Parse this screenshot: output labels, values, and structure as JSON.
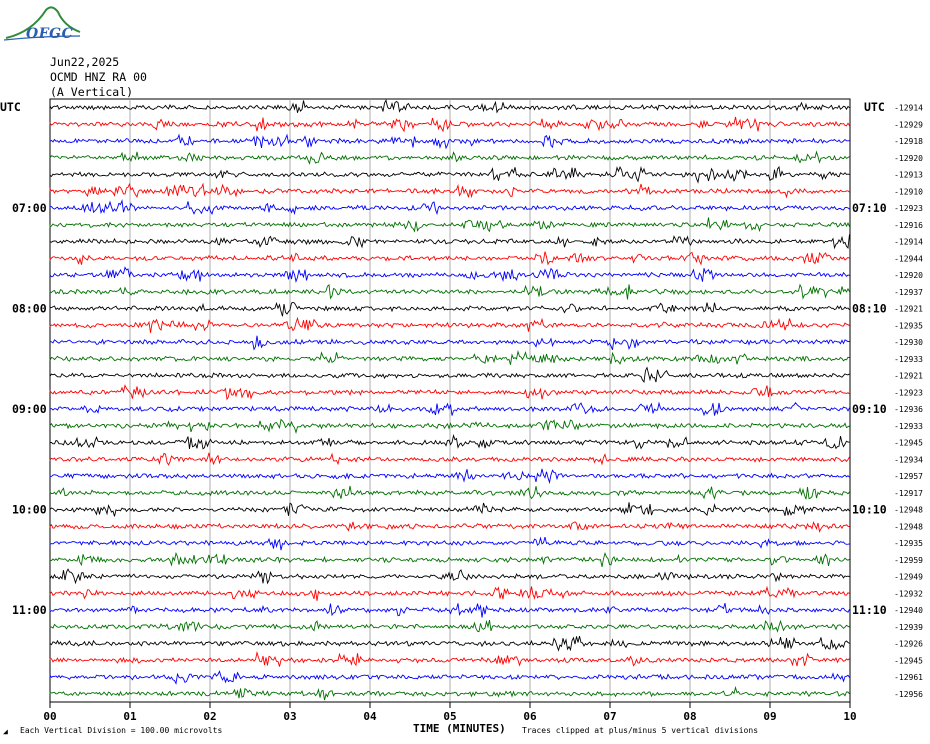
{
  "logo": {
    "text": "OFGC"
  },
  "header": {
    "date": "Jun22,2025",
    "station": "OCMD HNZ RA 00",
    "component": "(A Vertical)"
  },
  "utc_left": "UTC",
  "utc_right": "UTC",
  "footer": {
    "scale_note": "Each Vertical Division =  100.00 microvolts",
    "clip_note": "Traces clipped at plus/minus 5 vertical divisions",
    "xlabel": "TIME (MINUTES)"
  },
  "colors": {
    "trace_cycle": [
      "#000000",
      "#ff0000",
      "#0000ff",
      "#007000"
    ],
    "grid": "#9a9a9a"
  },
  "chart_data": {
    "type": "line",
    "x": [
      "00",
      "01",
      "02",
      "03",
      "04",
      "05",
      "06",
      "07",
      "08",
      "09",
      "10"
    ],
    "xlabel": "TIME (MINUTES)",
    "xlim": [
      0,
      10
    ],
    "left_labels": [
      {
        "row": 6,
        "text": "07:00"
      },
      {
        "row": 12,
        "text": "08:00"
      },
      {
        "row": 18,
        "text": "09:00"
      },
      {
        "row": 24,
        "text": "10:00"
      },
      {
        "row": 30,
        "text": "11:00"
      }
    ],
    "right_labels": [
      {
        "row": 6,
        "text": "07:10"
      },
      {
        "row": 12,
        "text": "08:10"
      },
      {
        "row": 18,
        "text": "09:10"
      },
      {
        "row": 24,
        "text": "10:10"
      },
      {
        "row": 30,
        "text": "11:10"
      }
    ],
    "offsets": [
      "-12914",
      "-12929",
      "-12918",
      "-12920",
      "-12913",
      "-12910",
      "-12923",
      "-12916",
      "-12914",
      "-12944",
      "-12920",
      "-12937",
      "-12921",
      "-12935",
      "-12930",
      "-12933",
      "-12921",
      "-12923",
      "-12936",
      "-12933",
      "-12945",
      "-12934",
      "-12957",
      "-12917",
      "-12948",
      "-12948",
      "-12935",
      "-12959",
      "-12949",
      "-12932",
      "-12940",
      "-12939",
      "-12926",
      "-12945",
      "-12961",
      "-12956"
    ],
    "rows": 36
  }
}
